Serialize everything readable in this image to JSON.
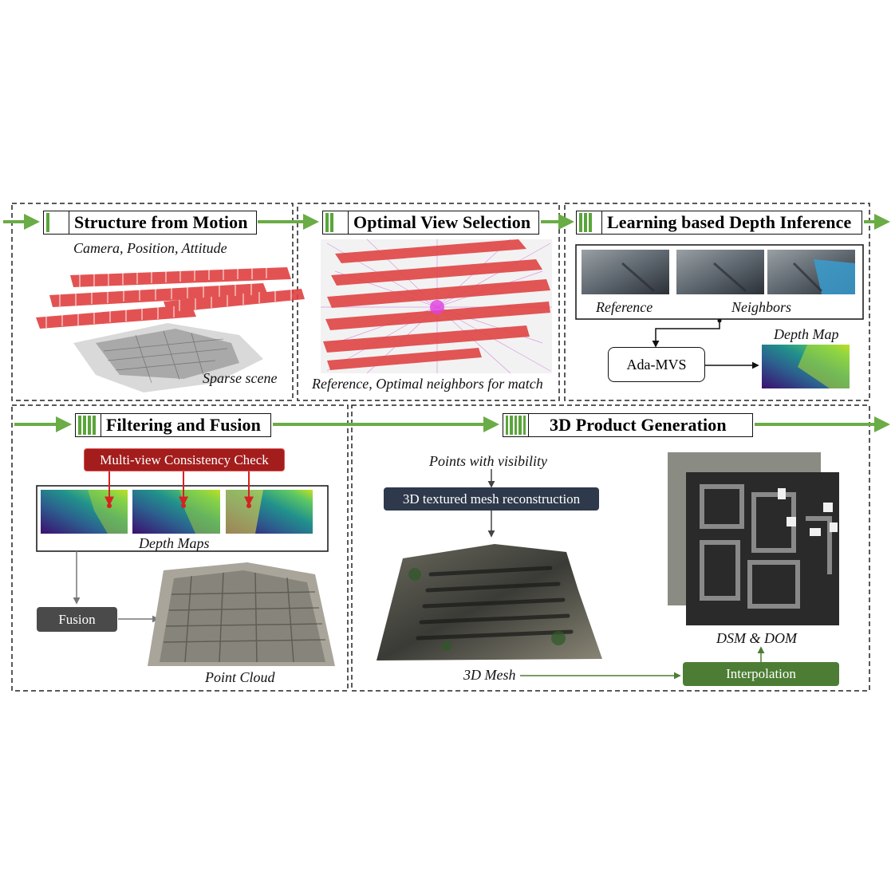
{
  "sfm": {
    "title": "Structure from Motion",
    "caption": "Camera, Position, Attitude",
    "scene_label": "Sparse scene"
  },
  "ovs": {
    "title": "Optimal View Selection",
    "caption": "Reference, Optimal neighbors for match"
  },
  "ldi": {
    "title": "Learning based Depth Inference",
    "reference_label": "Reference",
    "neighbors_label": "Neighbors",
    "depth_map_label": "Depth Map",
    "ada_mvs_label": "Ada-MVS"
  },
  "ff": {
    "title": "Filtering and Fusion",
    "check_label": "Multi-view Consistency Check",
    "depth_maps_label": "Depth Maps",
    "fusion_label": "Fusion",
    "point_cloud_label": "Point Cloud"
  },
  "pg": {
    "title": "3D Product Generation",
    "visibility_label": "Points with visibility",
    "mesh_recon_label": "3D textured mesh reconstruction",
    "mesh_label": "3D Mesh",
    "dsm_dom_label": "DSM & DOM",
    "interpolation_label": "Interpolation"
  },
  "colors": {
    "accent_green": "#5aa53a",
    "check_red": "#a31d1d",
    "fusion_gray": "#4a4a4a",
    "recon_navy": "#2e3a4b",
    "interp_green": "#4d7d34"
  }
}
